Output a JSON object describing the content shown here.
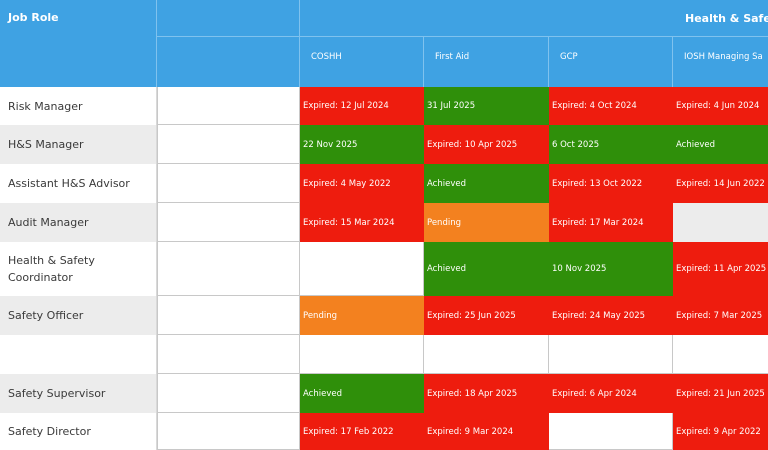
{
  "header": {
    "job_role": "Job Role",
    "group": "Health & Safety",
    "columns": [
      "COSHH",
      "First Aid",
      "GCP",
      "IOSH Managing Sa"
    ]
  },
  "rows": [
    {
      "role": "Risk Manager",
      "cells": [
        "Expired: 12 Jul 2024",
        "31 Jul 2025",
        "Expired: 4 Oct 2024",
        "Expired: 4 Jun 2024"
      ]
    },
    {
      "role": "H&S Manager",
      "cells": [
        "22 Nov 2025",
        "Expired: 10 Apr 2025",
        "6 Oct 2025",
        "Achieved"
      ]
    },
    {
      "role": "Assistant H&S Advisor",
      "cells": [
        "Expired: 4 May 2022",
        "Achieved",
        "Expired: 13 Oct 2022",
        "Expired: 14 Jun 2022"
      ]
    },
    {
      "role": "Audit Manager",
      "cells": [
        "Expired: 15 Mar 2024",
        "Pending",
        "Expired: 17 Mar 2024",
        ""
      ]
    },
    {
      "role": "Health & Safety Coordinator",
      "cells": [
        "",
        "Achieved",
        "10 Nov 2025",
        "Expired: 11 Apr 2025"
      ]
    },
    {
      "role": "Safety Officer",
      "cells": [
        "Pending",
        "Expired: 25 Jun 2025",
        "Expired: 24 May 2025",
        "Expired: 7 Mar 2025"
      ]
    },
    {
      "role": "",
      "cells": [
        "",
        "",
        "",
        ""
      ]
    },
    {
      "role": "Safety Supervisor",
      "cells": [
        "Achieved",
        "Expired: 18 Apr 2025",
        "Expired: 6 Apr 2024",
        "Expired: 21 Jun 2025"
      ]
    },
    {
      "role": "Safety Director",
      "cells": [
        "Expired: 17 Feb 2022",
        "Expired: 9 Mar 2024",
        "",
        "Expired: 9 Apr 2022"
      ]
    }
  ],
  "status_colors": {
    "expired": "#ee1c0e",
    "valid": "#2f8f0a",
    "pending": "#f3811f",
    "header": "#3fa2e3"
  }
}
